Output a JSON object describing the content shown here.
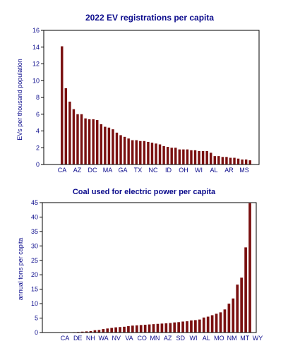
{
  "colors": {
    "bar": "#7a1010",
    "axis": "#000000",
    "text": "#0b0b8c",
    "background": "#ffffff"
  },
  "chart_data": [
    {
      "type": "bar",
      "title": "2022 EV registrations per capita",
      "xlabel": "",
      "ylabel": "EVs per thousand population",
      "ylim": [
        0,
        16
      ],
      "yticks": [
        0,
        2,
        4,
        6,
        8,
        10,
        12,
        14,
        16
      ],
      "grid": false,
      "tick_labels": [
        "CA",
        "AZ",
        "DC",
        "MA",
        "GA",
        "TX",
        "NC",
        "ID",
        "OH",
        "WI",
        "AL",
        "AR",
        "MS"
      ],
      "series": [
        {
          "values": [
            14.1,
            9.1,
            7.5,
            6.6,
            6.0,
            6.0,
            5.5,
            5.4,
            5.4,
            5.3,
            4.8,
            4.5,
            4.4,
            4.2,
            3.8,
            3.5,
            3.3,
            3.1,
            2.9,
            2.9,
            2.8,
            2.8,
            2.7,
            2.6,
            2.5,
            2.4,
            2.2,
            2.1,
            2.0,
            2.0,
            1.8,
            1.8,
            1.8,
            1.7,
            1.7,
            1.6,
            1.6,
            1.6,
            1.4,
            1.0,
            1.0,
            0.9,
            0.9,
            0.8,
            0.8,
            0.7,
            0.6,
            0.6,
            0.5
          ]
        }
      ]
    },
    {
      "type": "bar",
      "title": "Coal used for electric power per capita",
      "xlabel": "",
      "ylabel": "annual tons per capita",
      "ylim": [
        0,
        45
      ],
      "yticks": [
        0,
        5,
        10,
        15,
        20,
        25,
        30,
        35,
        40,
        45
      ],
      "grid": false,
      "tick_labels": [
        "CA",
        "DE",
        "NH",
        "WA",
        "NV",
        "VA",
        "CO",
        "MN",
        "AZ",
        "SD",
        "WI",
        "AL",
        "MO",
        "NM",
        "MT",
        "WY"
      ],
      "series": [
        {
          "values": [
            0.0,
            0.05,
            0.1,
            0.15,
            0.2,
            0.3,
            0.4,
            0.5,
            0.8,
            0.9,
            1.2,
            1.4,
            1.6,
            1.8,
            1.9,
            2.0,
            2.2,
            2.4,
            2.5,
            2.6,
            2.7,
            2.8,
            2.9,
            3.0,
            3.1,
            3.2,
            3.3,
            3.5,
            3.6,
            3.8,
            3.9,
            4.2,
            4.3,
            4.5,
            5.2,
            5.5,
            6.0,
            6.5,
            7.0,
            8.0,
            10.0,
            11.8,
            16.6,
            19.0,
            29.5,
            44.8
          ]
        }
      ]
    }
  ]
}
